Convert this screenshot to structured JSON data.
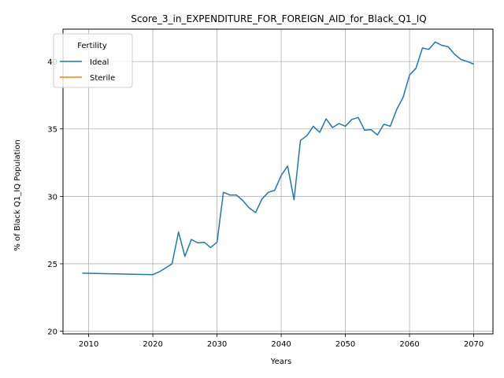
{
  "chart_data": {
    "type": "line",
    "title": "Score_3_in_EXPENDITURE_FOR_FOREIGN_AID_for_Black_Q1_IQ",
    "xlabel": "Years",
    "ylabel": "% of Black Q1_IQ Population",
    "xlim": [
      2006,
      2073
    ],
    "ylim": [
      19.8,
      42.4
    ],
    "xticks": [
      2010,
      2020,
      2030,
      2040,
      2050,
      2060,
      2070
    ],
    "yticks": [
      20,
      25,
      30,
      35,
      40
    ],
    "grid": true,
    "legend": {
      "title": "Fertility",
      "placement": "upper-left"
    },
    "series": [
      {
        "name": "Ideal",
        "color": "#1f77b4",
        "x": [
          2009,
          2020,
          2021,
          2022,
          2023,
          2024,
          2025,
          2026,
          2027,
          2028,
          2029,
          2030,
          2031,
          2032,
          2033,
          2034,
          2035,
          2036,
          2037,
          2038,
          2039,
          2040,
          2041,
          2042,
          2043,
          2044,
          2045,
          2046,
          2047,
          2048,
          2049,
          2050,
          2051,
          2052,
          2053,
          2054,
          2055,
          2056,
          2057,
          2058,
          2059,
          2060,
          2061,
          2062,
          2063,
          2064,
          2065,
          2066,
          2067,
          2068,
          2069,
          2070
        ],
        "y": [
          24.3,
          24.2,
          24.4,
          24.7,
          25.0,
          27.35,
          25.55,
          26.8,
          26.55,
          26.6,
          26.2,
          26.6,
          30.3,
          30.1,
          30.1,
          29.7,
          29.15,
          28.8,
          29.8,
          30.3,
          30.45,
          31.55,
          32.25,
          29.75,
          34.15,
          34.5,
          35.2,
          34.75,
          35.75,
          35.1,
          35.4,
          35.2,
          35.7,
          35.85,
          34.9,
          34.95,
          34.55,
          35.35,
          35.2,
          36.45,
          37.35,
          39.0,
          39.5,
          41.0,
          40.9,
          41.45,
          41.2,
          41.1,
          40.55,
          40.15,
          40.0,
          39.8
        ]
      },
      {
        "name": "Sterile",
        "color": "#ff7f0e",
        "x": [],
        "y": []
      }
    ]
  }
}
